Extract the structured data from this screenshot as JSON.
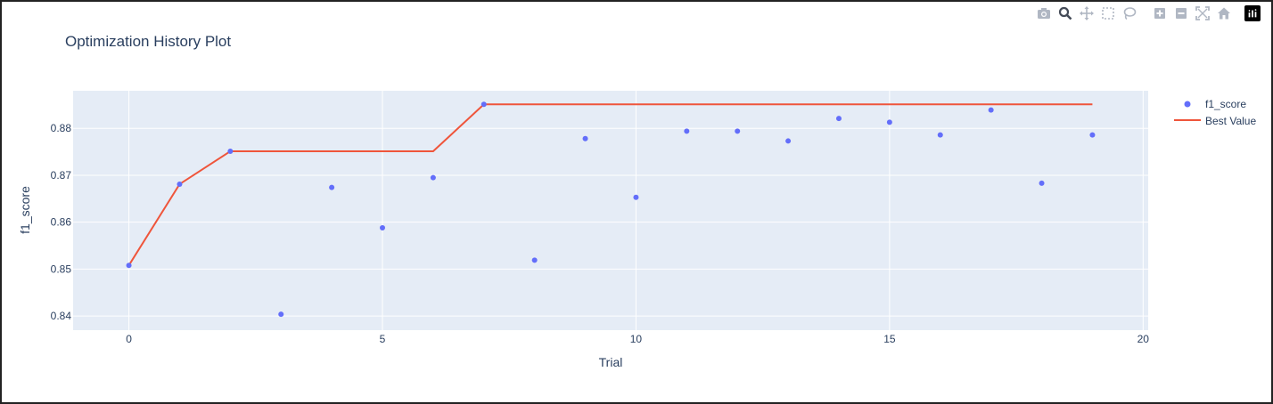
{
  "modebar": {
    "buttons": [
      "camera-icon",
      "zoom-icon",
      "pan-icon",
      "box-select-icon",
      "lasso-select-icon",
      "zoom-in-icon",
      "zoom-out-icon",
      "autoscale-icon",
      "reset-axes-icon"
    ],
    "logo": "plotly-logo-icon"
  },
  "chart_data": {
    "type": "scatter",
    "title": "Optimization History Plot",
    "xlabel": "Trial",
    "ylabel": "f1_score",
    "xlim": [
      -1.1,
      20.1
    ],
    "ylim": [
      0.837,
      0.888
    ],
    "xticks": [
      0,
      5,
      10,
      15,
      20
    ],
    "yticks": [
      0.84,
      0.85,
      0.86,
      0.87,
      0.88
    ],
    "xtick_labels": [
      "0",
      "5",
      "10",
      "15",
      "20"
    ],
    "ytick_labels": [
      "0.84",
      "0.85",
      "0.86",
      "0.87",
      "0.88"
    ],
    "grid": true,
    "legend_position": "top-right",
    "series": [
      {
        "name": "f1_score",
        "mode": "markers",
        "color": "#636efa",
        "x": [
          0,
          1,
          2,
          3,
          4,
          5,
          6,
          7,
          8,
          9,
          10,
          11,
          12,
          13,
          14,
          15,
          16,
          17,
          18,
          19
        ],
        "y": [
          0.8508,
          0.8681,
          0.8751,
          0.8404,
          0.8674,
          0.8588,
          0.8695,
          0.8851,
          0.8519,
          0.8778,
          0.8653,
          0.8794,
          0.8794,
          0.8773,
          0.8821,
          0.8813,
          0.8786,
          0.8839,
          0.8683,
          0.8786
        ]
      },
      {
        "name": "Best Value",
        "mode": "lines",
        "color": "#ef553b",
        "x": [
          0,
          1,
          2,
          3,
          4,
          5,
          6,
          7,
          8,
          9,
          10,
          11,
          12,
          13,
          14,
          15,
          16,
          17,
          18,
          19
        ],
        "y": [
          0.8508,
          0.8681,
          0.8751,
          0.8751,
          0.8751,
          0.8751,
          0.8751,
          0.8851,
          0.8851,
          0.8851,
          0.8851,
          0.8851,
          0.8851,
          0.8851,
          0.8851,
          0.8851,
          0.8851,
          0.8851,
          0.8851,
          0.8851
        ]
      }
    ]
  }
}
